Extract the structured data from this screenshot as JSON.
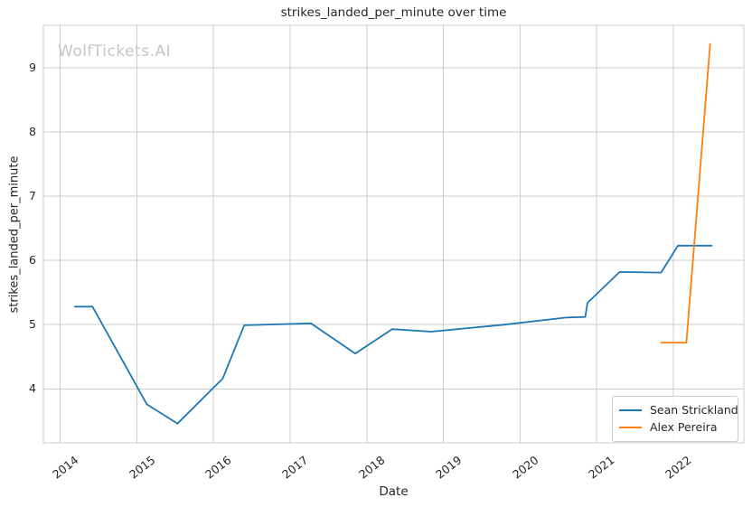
{
  "chart_data": {
    "type": "line",
    "title": "strikes_landed_per_minute over time",
    "xlabel": "Date",
    "ylabel": "strikes_landed_per_minute",
    "watermark": "WolfTickets.AI",
    "grid": true,
    "legend_position": "lower right",
    "xlim": [
      2013.78,
      2022.92
    ],
    "ylim": [
      3.16,
      9.66
    ],
    "xticks": [
      2014,
      2015,
      2016,
      2017,
      2018,
      2019,
      2020,
      2021,
      2022
    ],
    "yticks": [
      4,
      5,
      6,
      7,
      8,
      9
    ],
    "colors": {
      "grid": "#cccccc",
      "spine": "#cccccc",
      "text": "#262626",
      "watermark": "#c5c5c5",
      "background": "#ffffff"
    },
    "series": [
      {
        "name": "Sean Strickland",
        "color": "#1f77b4",
        "points": [
          [
            2014.19,
            5.28
          ],
          [
            2014.42,
            5.28
          ],
          [
            2015.13,
            3.76
          ],
          [
            2015.53,
            3.46
          ],
          [
            2016.12,
            4.16
          ],
          [
            2016.4,
            4.99
          ],
          [
            2017.27,
            5.02
          ],
          [
            2017.85,
            4.55
          ],
          [
            2018.33,
            4.93
          ],
          [
            2018.84,
            4.89
          ],
          [
            2019.8,
            5.0
          ],
          [
            2020.6,
            5.11
          ],
          [
            2020.85,
            5.12
          ],
          [
            2020.88,
            5.34
          ],
          [
            2021.3,
            5.82
          ],
          [
            2021.84,
            5.81
          ],
          [
            2022.06,
            6.23
          ],
          [
            2022.5,
            6.23
          ]
        ]
      },
      {
        "name": "Alex Pereira",
        "color": "#ff7f0e",
        "points": [
          [
            2021.84,
            4.72
          ],
          [
            2022.17,
            4.72
          ],
          [
            2022.48,
            9.37
          ]
        ]
      }
    ]
  }
}
